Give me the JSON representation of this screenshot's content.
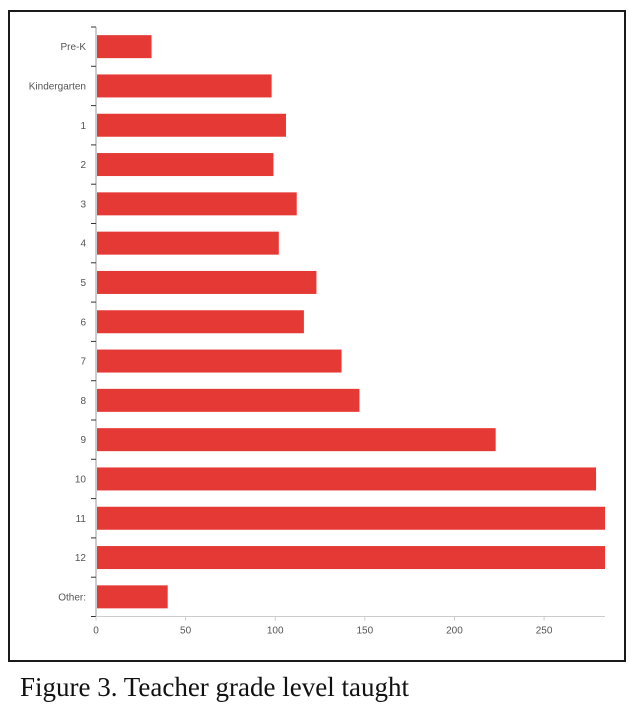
{
  "figure": {
    "caption": "Figure 3. Teacher grade level taught"
  },
  "chart_data": {
    "type": "bar",
    "orientation": "horizontal",
    "categories": [
      "Pre-K",
      "Kindergarten",
      "1",
      "2",
      "3",
      "4",
      "5",
      "6",
      "7",
      "8",
      "9",
      "10",
      "11",
      "12",
      "Other:"
    ],
    "values": [
      31,
      98,
      106,
      99,
      112,
      102,
      123,
      116,
      137,
      147,
      223,
      279,
      284,
      284,
      40
    ],
    "xticks": [
      0,
      50,
      100,
      150,
      200,
      250
    ],
    "xlim": [
      0,
      284
    ],
    "title": "",
    "xlabel": "",
    "ylabel": "",
    "grid": false,
    "legend": "none",
    "bar_color": "#e53935",
    "axis_color": "#999999"
  }
}
